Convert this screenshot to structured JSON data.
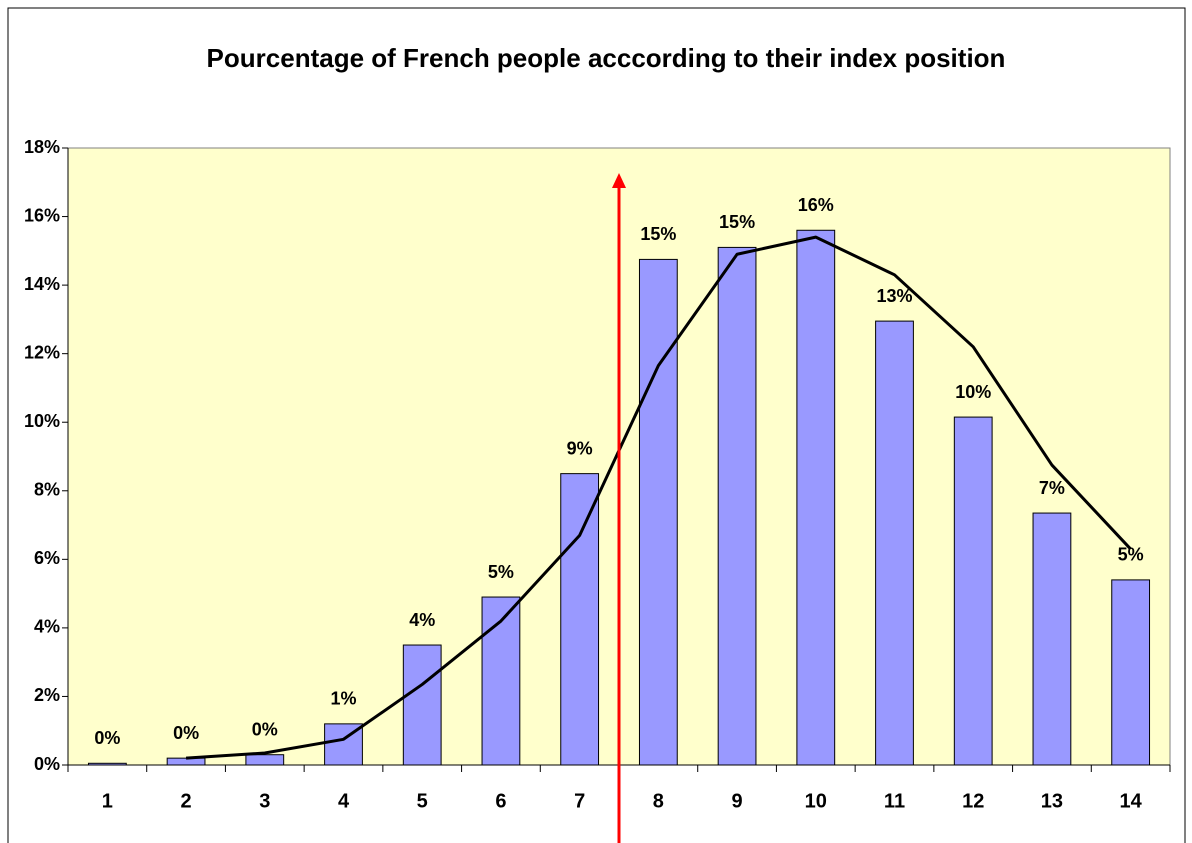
{
  "chart_data": {
    "type": "bar",
    "title": "Pourcentage of French people acccording to their index position",
    "categories": [
      "1",
      "2",
      "3",
      "4",
      "5",
      "6",
      "7",
      "8",
      "9",
      "10",
      "11",
      "12",
      "13",
      "14"
    ],
    "series": [
      {
        "type": "bar",
        "color": "#9999ff",
        "values": [
          0.05,
          0.2,
          0.3,
          1.2,
          3.5,
          4.9,
          8.5,
          14.75,
          15.1,
          15.6,
          12.95,
          10.15,
          7.35,
          5.4
        ],
        "value_labels": [
          "0%",
          "0%",
          "0%",
          "1%",
          "4%",
          "5%",
          "9%",
          "15%",
          "15%",
          "16%",
          "13%",
          "10%",
          "7%",
          "5%"
        ]
      },
      {
        "type": "line",
        "color": "#000000",
        "values": [
          null,
          0.2,
          0.35,
          0.75,
          2.35,
          4.2,
          6.7,
          11.65,
          14.9,
          15.4,
          14.3,
          12.2,
          8.75,
          6.3
        ]
      }
    ],
    "ylim": [
      0,
      18
    ],
    "yticks": [
      {
        "value": 0,
        "label": "0%"
      },
      {
        "value": 2,
        "label": "2%"
      },
      {
        "value": 4,
        "label": "4%"
      },
      {
        "value": 6,
        "label": "6%"
      },
      {
        "value": 8,
        "label": "8%"
      },
      {
        "value": 10,
        "label": "10%"
      },
      {
        "value": 12,
        "label": "12%"
      },
      {
        "value": 14,
        "label": "14%"
      },
      {
        "value": 16,
        "label": "16%"
      },
      {
        "value": 18,
        "label": "18%"
      }
    ],
    "plot_background": "#ffffcc",
    "grid": false
  }
}
